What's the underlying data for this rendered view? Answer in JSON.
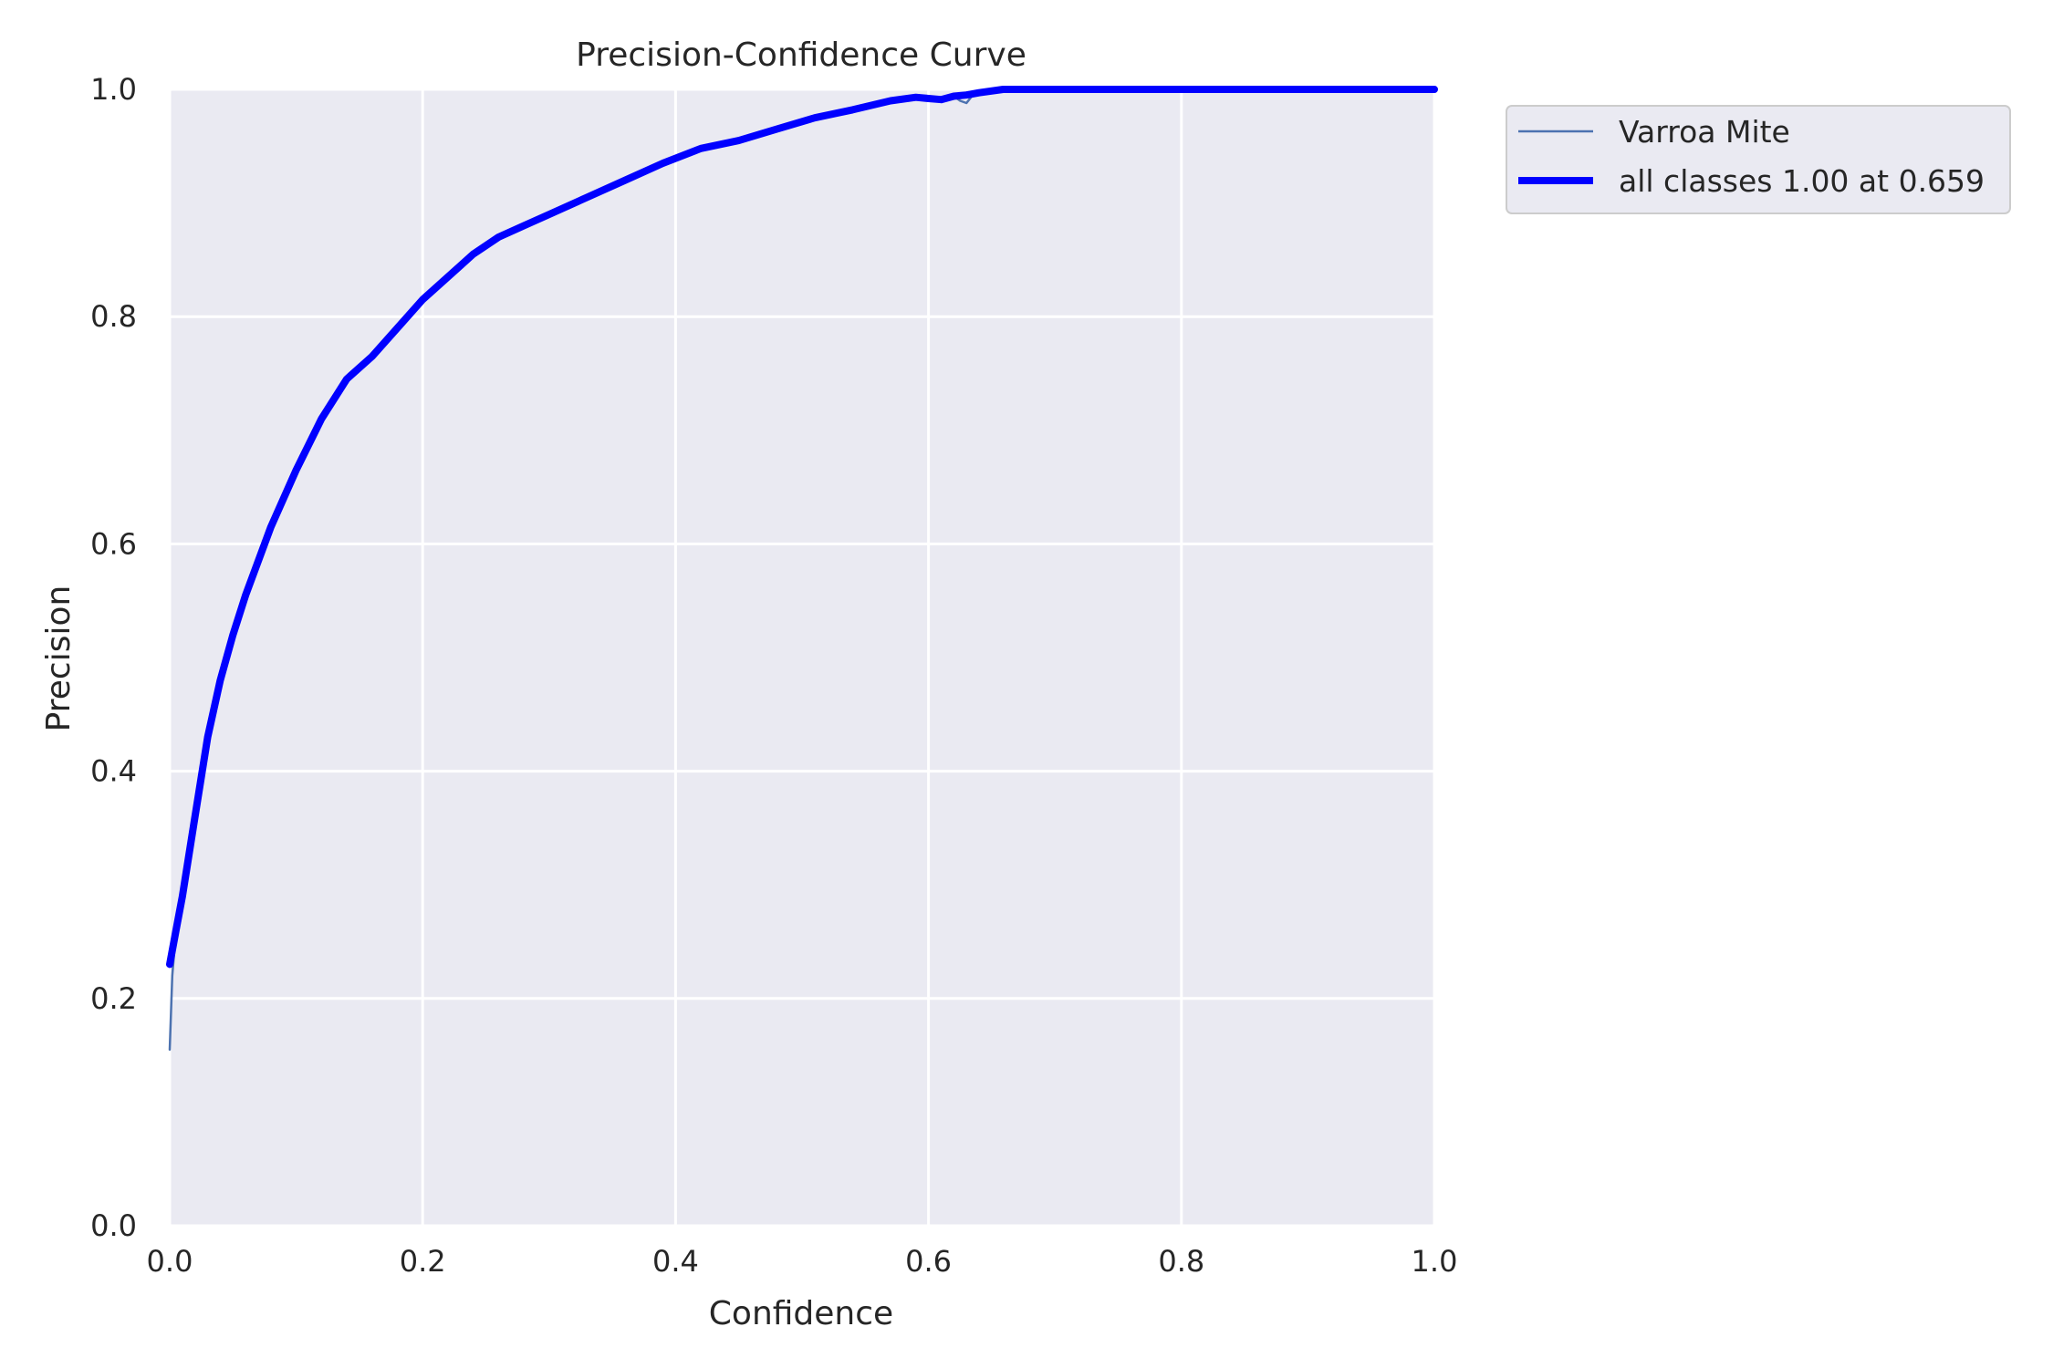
{
  "chart_data": {
    "type": "line",
    "title": "Precision-Confidence Curve",
    "xlabel": "Confidence",
    "ylabel": "Precision",
    "xlim": [
      0.0,
      1.0
    ],
    "ylim": [
      0.0,
      1.0
    ],
    "xticks": [
      "0.0",
      "0.2",
      "0.4",
      "0.6",
      "0.8",
      "1.0"
    ],
    "yticks": [
      "0.0",
      "0.2",
      "0.4",
      "0.6",
      "0.8",
      "1.0"
    ],
    "grid": true,
    "legend_position": "outside-top-right",
    "background": "#eaeaf2",
    "series": [
      {
        "name": "Varroa Mite",
        "color": "#4c72b0",
        "x": [
          0.0,
          0.002,
          0.005,
          0.01,
          0.02,
          0.03,
          0.04,
          0.05,
          0.06,
          0.08,
          0.1,
          0.12,
          0.14,
          0.16,
          0.18,
          0.2,
          0.22,
          0.24,
          0.26,
          0.28,
          0.3,
          0.33,
          0.36,
          0.39,
          0.42,
          0.45,
          0.48,
          0.51,
          0.54,
          0.57,
          0.59,
          0.6,
          0.61,
          0.62,
          0.625,
          0.63,
          0.635,
          0.64,
          0.659,
          0.7,
          0.8,
          0.9,
          1.0
        ],
        "y": [
          0.155,
          0.22,
          0.26,
          0.29,
          0.36,
          0.43,
          0.48,
          0.52,
          0.555,
          0.615,
          0.665,
          0.71,
          0.745,
          0.765,
          0.79,
          0.815,
          0.835,
          0.855,
          0.87,
          0.88,
          0.89,
          0.905,
          0.92,
          0.935,
          0.948,
          0.955,
          0.965,
          0.975,
          0.982,
          0.99,
          0.993,
          0.992,
          0.991,
          0.994,
          0.99,
          0.988,
          0.995,
          0.997,
          1.0,
          1.0,
          1.0,
          1.0,
          1.0
        ]
      },
      {
        "name": "all classes 1.00 at 0.659",
        "color": "#0000ff",
        "x": [
          0.0,
          0.005,
          0.01,
          0.02,
          0.03,
          0.04,
          0.05,
          0.06,
          0.08,
          0.1,
          0.12,
          0.14,
          0.16,
          0.18,
          0.2,
          0.22,
          0.24,
          0.26,
          0.28,
          0.3,
          0.33,
          0.36,
          0.39,
          0.42,
          0.45,
          0.48,
          0.51,
          0.54,
          0.57,
          0.59,
          0.6,
          0.61,
          0.62,
          0.63,
          0.64,
          0.659,
          0.7,
          0.8,
          0.9,
          1.0
        ],
        "y": [
          0.23,
          0.26,
          0.29,
          0.36,
          0.43,
          0.48,
          0.52,
          0.555,
          0.615,
          0.665,
          0.71,
          0.745,
          0.765,
          0.79,
          0.815,
          0.835,
          0.855,
          0.87,
          0.88,
          0.89,
          0.905,
          0.92,
          0.935,
          0.948,
          0.955,
          0.965,
          0.975,
          0.982,
          0.99,
          0.993,
          0.992,
          0.991,
          0.994,
          0.995,
          0.997,
          1.0,
          1.0,
          1.0,
          1.0,
          1.0
        ]
      }
    ]
  }
}
